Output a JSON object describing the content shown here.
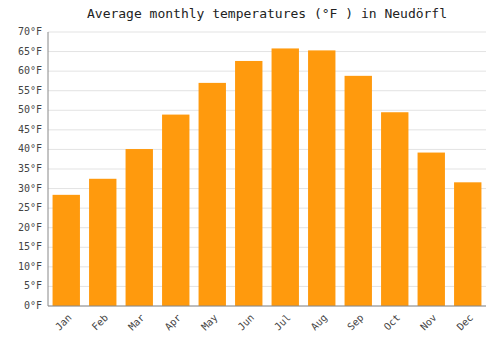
{
  "chart_data": {
    "type": "bar",
    "title": "Average monthly temperatures (°F ) in Neudörfl",
    "categories": [
      "Jan",
      "Feb",
      "Mar",
      "Apr",
      "May",
      "Jun",
      "Jul",
      "Aug",
      "Sep",
      "Oct",
      "Nov",
      "Dec"
    ],
    "values": [
      28.4,
      32.5,
      40.1,
      48.9,
      57.0,
      62.6,
      65.8,
      65.3,
      58.8,
      49.5,
      39.2,
      31.6
    ],
    "color": "#FF9A0D",
    "ylim": [
      0,
      70
    ],
    "yticks": [
      {
        "value": 0,
        "label": "0°F"
      },
      {
        "value": 5,
        "label": "5°F"
      },
      {
        "value": 10,
        "label": "10°F"
      },
      {
        "value": 15,
        "label": "15°F"
      },
      {
        "value": 20,
        "label": "20°F"
      },
      {
        "value": 25,
        "label": "25°F"
      },
      {
        "value": 30,
        "label": "30°F"
      },
      {
        "value": 35,
        "label": "35°F"
      },
      {
        "value": 40,
        "label": "40°F"
      },
      {
        "value": 45,
        "label": "45°F"
      },
      {
        "value": 50,
        "label": "50°F"
      },
      {
        "value": 55,
        "label": "55°F"
      },
      {
        "value": 60,
        "label": "60°F"
      },
      {
        "value": 65,
        "label": "65°F"
      },
      {
        "value": 70,
        "label": "70°F"
      }
    ],
    "grid": true
  }
}
